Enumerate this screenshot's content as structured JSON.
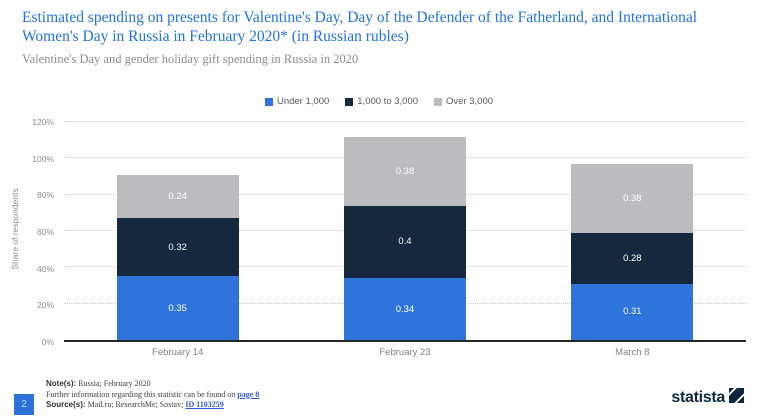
{
  "header": {
    "title": "Estimated spending on presents for Valentine's Day, Day of the Defender of the Fatherland, and International Women's Day in Russia in February 2020* (in Russian rubles)",
    "subtitle": "Valentine's Day and gender holiday gift spending in Russia in 2020"
  },
  "chart_data": {
    "type": "bar",
    "stacked": true,
    "categories": [
      "February 14",
      "February 23",
      "March 8"
    ],
    "series": [
      {
        "name": "Under 1,000",
        "color": "#2E74DB",
        "values": [
          0.35,
          0.34,
          0.31
        ]
      },
      {
        "name": "1,000 to 3,000",
        "color": "#16283E",
        "values": [
          0.32,
          0.4,
          0.28
        ]
      },
      {
        "name": "Over 3,000",
        "color": "#BCBCBE",
        "values": [
          0.24,
          0.38,
          0.38
        ]
      }
    ],
    "title": "",
    "xlabel": "",
    "ylabel": "Share of respondents",
    "ylim": [
      0,
      1.2
    ],
    "yticks": [
      "0%",
      "20%",
      "40%",
      "60%",
      "80%",
      "100%",
      "120%"
    ],
    "grid": "dotted-horizontal",
    "legend_position": "top-center",
    "totals_note": "stacked totals: 0.91, 1.12, 0.97"
  },
  "footer": {
    "page_number": "2",
    "note_label": "Note(s):",
    "note_text": " Russia; February 2020",
    "further_text": "Further information regarding this statistic can be found on ",
    "further_link": "page 8",
    "source_label": "Source(s):",
    "source_text": " Mail.ru; ResearchMe; Sostav; ",
    "source_link": "ID 1103259",
    "brand": "statista"
  },
  "colors": {
    "title_blue": "#2173DE",
    "link_blue": "#2E5BD7",
    "brand_navy": "#0C2940",
    "axis_gray": "#8C8C8C"
  }
}
